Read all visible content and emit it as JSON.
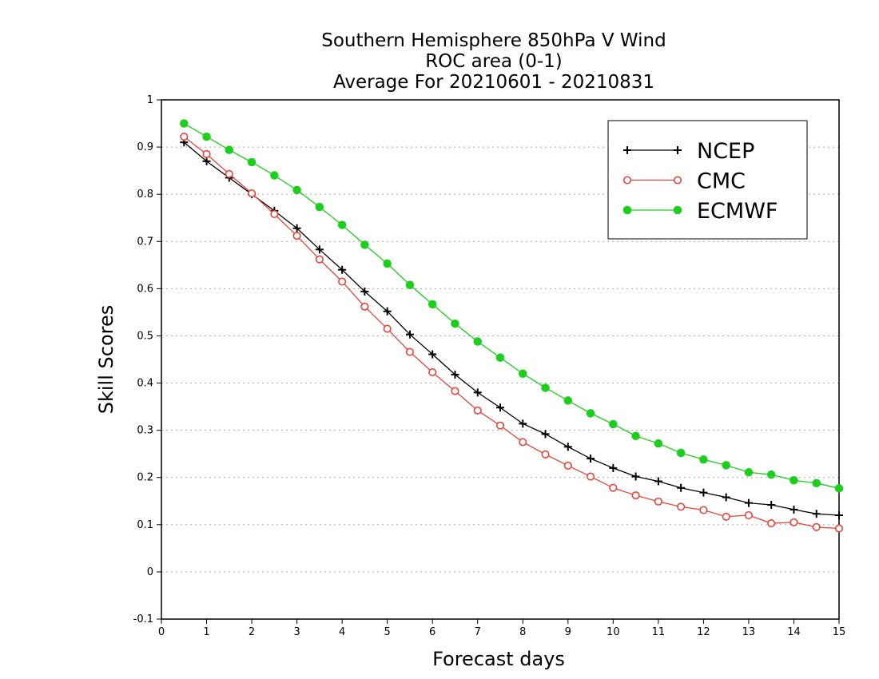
{
  "chart_data": {
    "type": "line",
    "title": [
      "Southern Hemisphere 850hPa V Wind",
      "ROC area (0-1)",
      "Average For 20210601 - 20210831"
    ],
    "xlabel": "Forecast days",
    "ylabel": "Skill Scores",
    "xlim": [
      0,
      15
    ],
    "ylim": [
      -0.1,
      1
    ],
    "xticks": [
      "0",
      "1",
      "2",
      "3",
      "4",
      "5",
      "6",
      "7",
      "8",
      "9",
      "10",
      "11",
      "12",
      "13",
      "14",
      "15"
    ],
    "yticks": [
      "-0.1",
      "0",
      "0.1",
      "0.2",
      "0.3",
      "0.4",
      "0.5",
      "0.6",
      "0.7",
      "0.8",
      "0.9",
      "1"
    ],
    "grid": "horizontal dotted",
    "legend_position": "top-right",
    "x": [
      0.5,
      1,
      1.5,
      2,
      2.5,
      3,
      3.5,
      4,
      4.5,
      5,
      5.5,
      6,
      6.5,
      7,
      7.5,
      8,
      8.5,
      9,
      9.5,
      10,
      10.5,
      11,
      11.5,
      12,
      12.5,
      13,
      13.5,
      14,
      14.5,
      15
    ],
    "series": [
      {
        "name": "NCEP",
        "color": "#000000",
        "marker": "plus",
        "values": [
          0.91,
          0.87,
          0.835,
          0.8,
          0.765,
          0.728,
          0.683,
          0.64,
          0.594,
          0.552,
          0.503,
          0.461,
          0.418,
          0.38,
          0.348,
          0.314,
          0.292,
          0.265,
          0.24,
          0.22,
          0.202,
          0.192,
          0.178,
          0.168,
          0.158,
          0.146,
          0.142,
          0.132,
          0.123,
          0.12
        ]
      },
      {
        "name": "CMC",
        "color": "#e8443a",
        "marker": "open-circle",
        "values": [
          0.922,
          0.885,
          0.843,
          0.802,
          0.758,
          0.712,
          0.662,
          0.615,
          0.562,
          0.515,
          0.466,
          0.423,
          0.383,
          0.342,
          0.31,
          0.275,
          0.249,
          0.225,
          0.202,
          0.178,
          0.162,
          0.149,
          0.138,
          0.131,
          0.117,
          0.12,
          0.103,
          0.105,
          0.095,
          0.092
        ]
      },
      {
        "name": "ECMWF",
        "color": "#1ccf1c",
        "marker": "filled-circle",
        "values": [
          0.95,
          0.922,
          0.894,
          0.868,
          0.84,
          0.809,
          0.773,
          0.735,
          0.693,
          0.653,
          0.608,
          0.567,
          0.526,
          0.488,
          0.454,
          0.42,
          0.39,
          0.363,
          0.336,
          0.313,
          0.288,
          0.272,
          0.252,
          0.238,
          0.226,
          0.211,
          0.206,
          0.194,
          0.188,
          0.177
        ]
      }
    ]
  }
}
